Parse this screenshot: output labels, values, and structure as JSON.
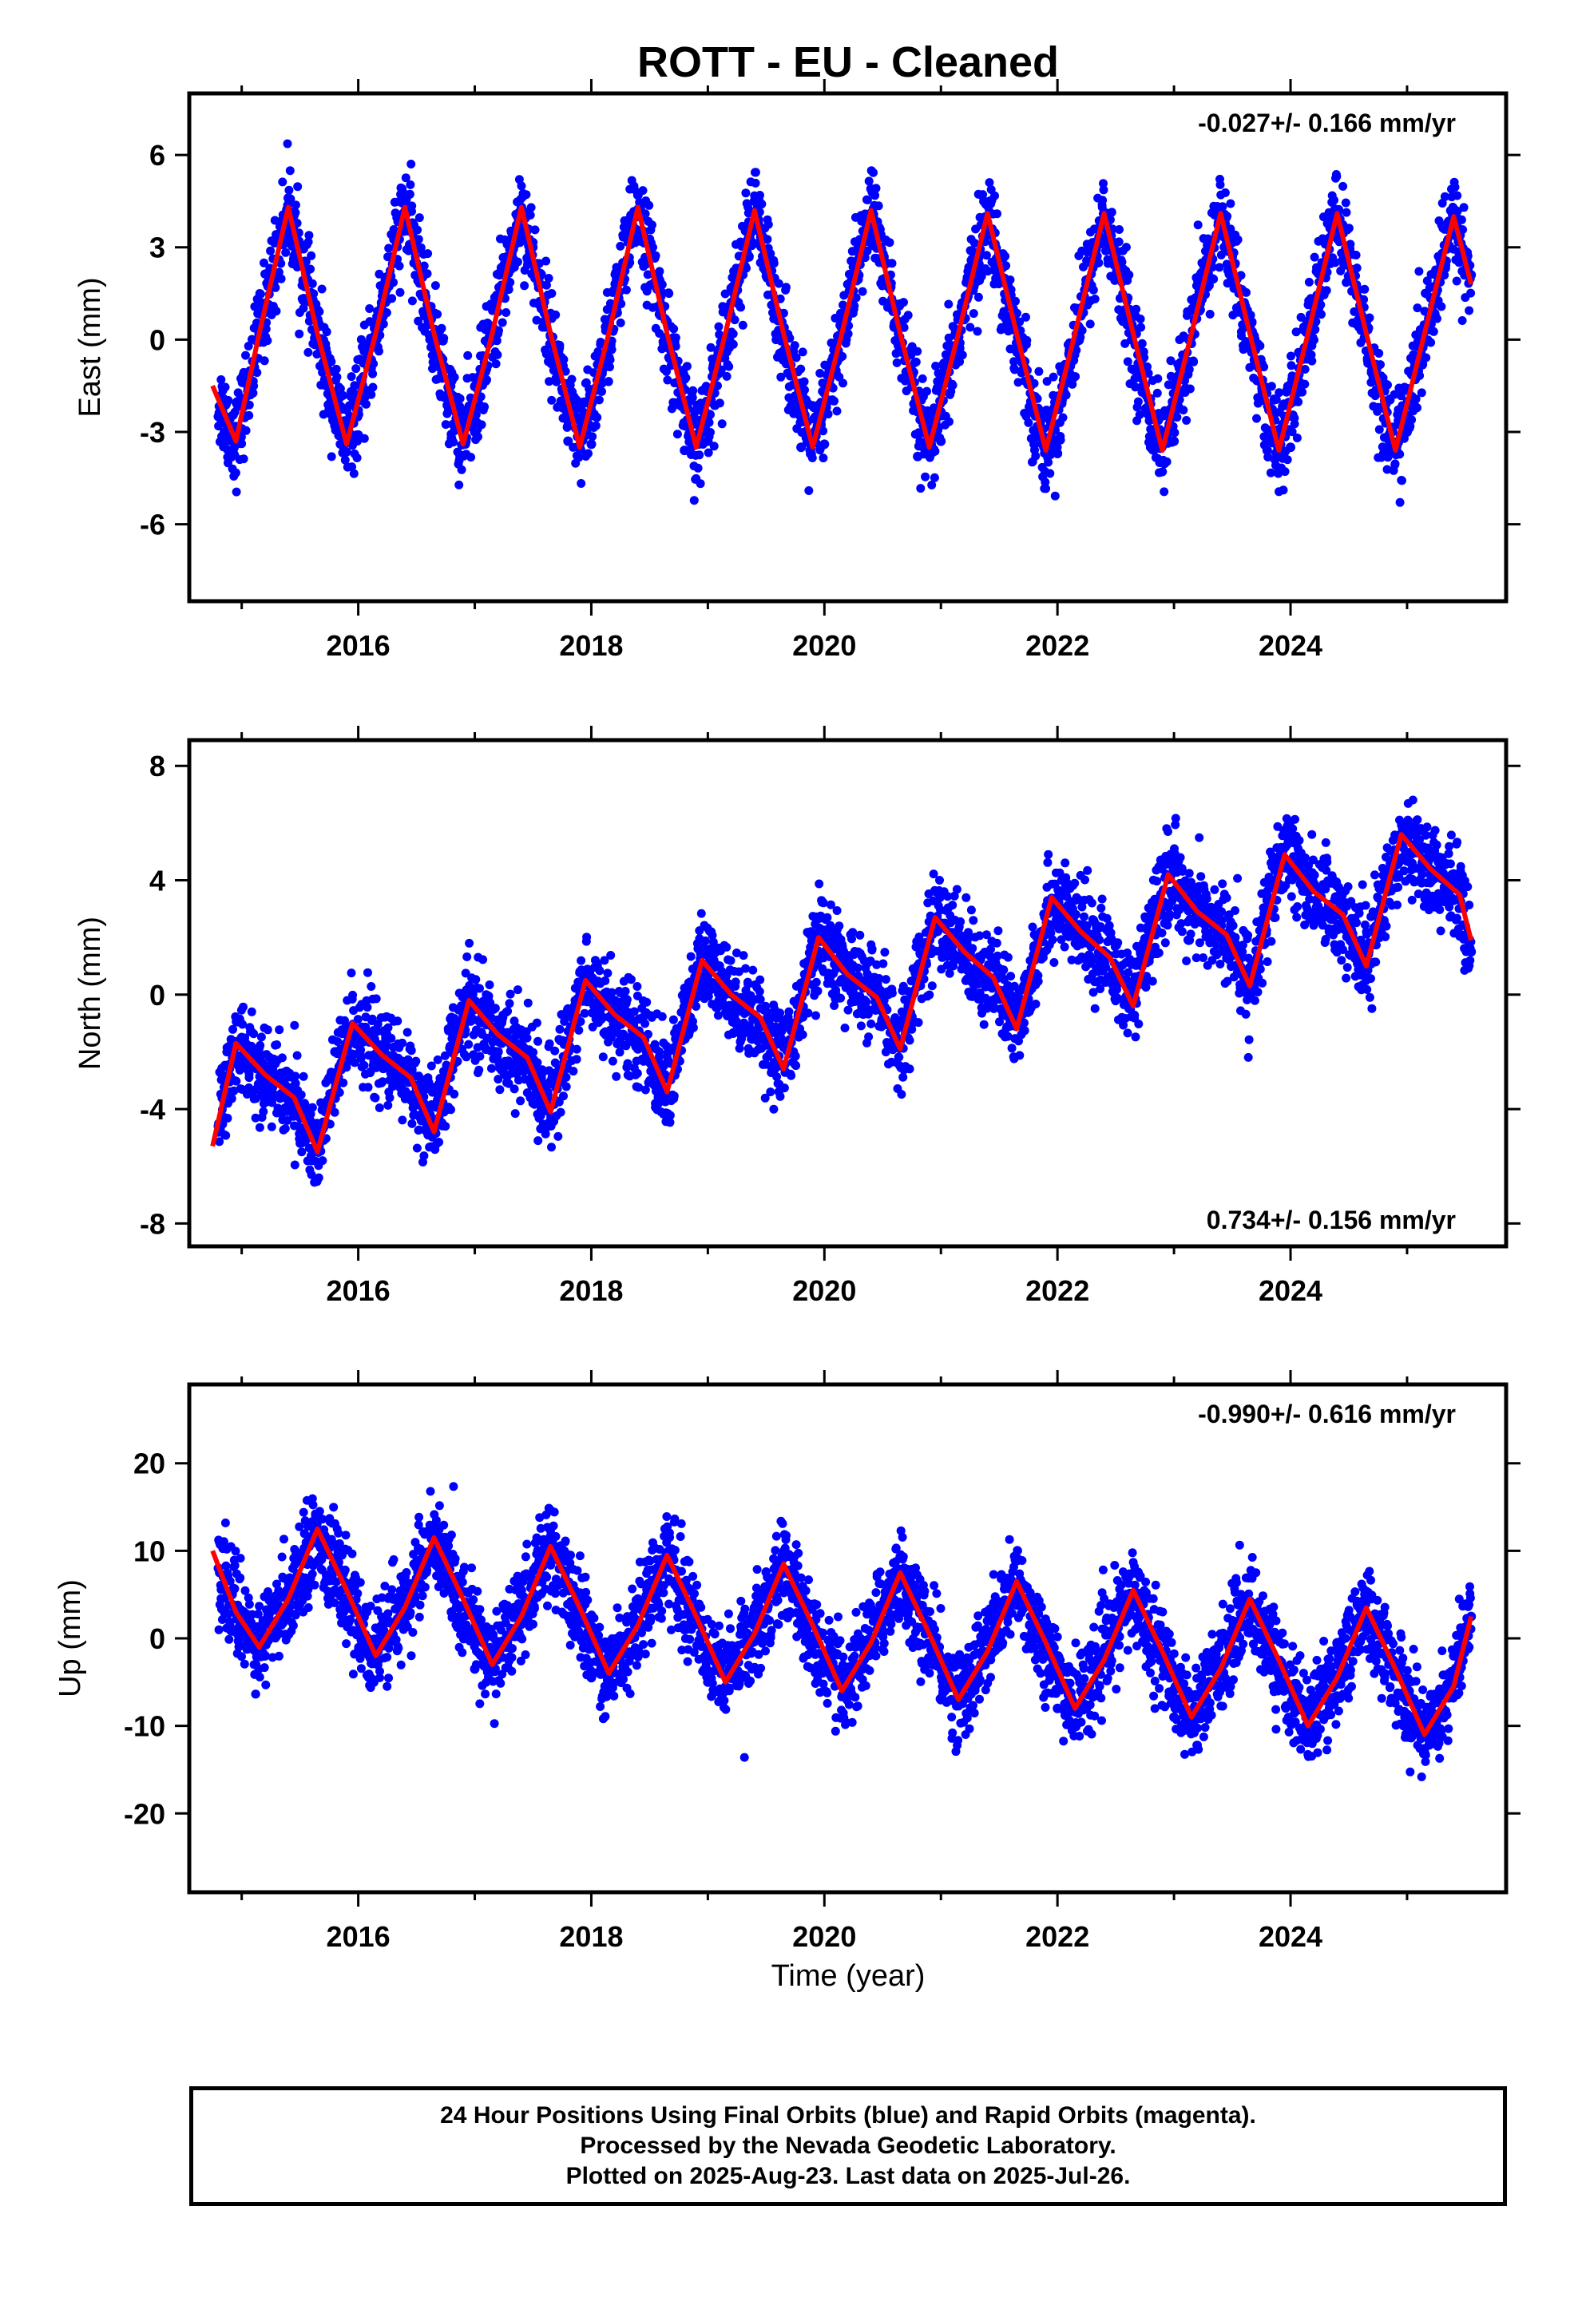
{
  "title": "ROTT  - EU - Cleaned",
  "xlabel": "Time (year)",
  "footer": {
    "line1": "24 Hour Positions Using Final Orbits (blue) and Rapid Orbits (magenta).",
    "line2": "Processed by the Nevada Geodetic Laboratory.",
    "line3": "Plotted on 2025-Aug-23. Last data on 2025-Jul-26."
  },
  "colors": {
    "points": "#0000ff",
    "fit": "#ff0000",
    "frame": "#000000"
  },
  "chart_data": [
    {
      "type": "scatter",
      "component": "east",
      "ylabel": "East (mm)",
      "rate_text": "-0.027+/- 0.166 mm/yr",
      "rate_position": "top-right",
      "xlim": [
        2014.55,
        2025.85
      ],
      "ylim": [
        -8.5,
        8.0
      ],
      "x_ticks": [
        2016,
        2018,
        2020,
        2022,
        2024
      ],
      "x_tick_labels": [
        "2016",
        "2018",
        "2020",
        "2022",
        "2024"
      ],
      "y_ticks": [
        -6,
        -3,
        0,
        3,
        6
      ],
      "y_tick_labels": [
        "-6",
        "-3",
        "0",
        "3",
        "6"
      ],
      "series": [
        {
          "kind": "points",
          "x": [
            2014.8,
            2015.0,
            2015.2,
            2015.4,
            2015.6,
            2015.8,
            2016.0,
            2016.2,
            2016.4,
            2016.6,
            2016.8,
            2017.0,
            2017.2,
            2017.4,
            2017.6,
            2017.8,
            2018.0,
            2018.2,
            2018.4,
            2018.6,
            2018.8,
            2019.0,
            2019.2,
            2019.4,
            2019.6,
            2019.8,
            2020.0,
            2020.2,
            2020.4,
            2020.6,
            2020.8,
            2021.0,
            2021.2,
            2021.4,
            2021.6,
            2021.8,
            2022.0,
            2022.2,
            2022.4,
            2022.6,
            2022.8,
            2023.0,
            2023.2,
            2023.4,
            2023.6,
            2023.8,
            2024.0,
            2024.2,
            2024.4,
            2024.6,
            2024.8,
            2025.0,
            2025.2,
            2025.4,
            2025.55
          ],
          "y": [
            -2.5,
            -2.9,
            1.1,
            4.6,
            0.8,
            -2.8,
            -3.1,
            1.2,
            4.4,
            0.5,
            -3.2,
            -3.0,
            1.4,
            4.3,
            0.6,
            -3.3,
            -3.4,
            1.0,
            4.7,
            0.9,
            -3.6,
            -3.3,
            1.2,
            4.5,
            0.7,
            -3.5,
            -3.4,
            1.0,
            4.9,
            0.4,
            -3.8,
            -3.3,
            1.1,
            3.8,
            0.6,
            -3.4,
            -3.7,
            0.9,
            3.9,
            0.5,
            -3.5,
            -3.3,
            1.0,
            4.2,
            0.4,
            -3.6,
            -3.5,
            0.8,
            4.1,
            0.5,
            -3.7,
            -3.0,
            0.9,
            4.0,
            2.1
          ]
        },
        {
          "kind": "fit",
          "x": [
            2014.75,
            2014.95,
            2015.15,
            2015.4,
            2015.65,
            2015.9,
            2016.15,
            2016.4,
            2016.65,
            2016.9,
            2017.15,
            2017.4,
            2017.65,
            2017.9,
            2018.15,
            2018.4,
            2018.65,
            2018.9,
            2019.15,
            2019.4,
            2019.65,
            2019.9,
            2020.15,
            2020.4,
            2020.65,
            2020.9,
            2021.15,
            2021.4,
            2021.65,
            2021.9,
            2022.15,
            2022.4,
            2022.65,
            2022.9,
            2023.15,
            2023.4,
            2023.65,
            2023.9,
            2024.15,
            2024.4,
            2024.65,
            2024.9,
            2025.15,
            2025.4,
            2025.55
          ],
          "y": [
            -1.5,
            -3.3,
            0.2,
            4.3,
            0.2,
            -3.4,
            0.2,
            4.3,
            0.2,
            -3.4,
            0.2,
            4.3,
            0.2,
            -3.5,
            0.2,
            4.3,
            0.2,
            -3.5,
            0.2,
            4.2,
            0.2,
            -3.5,
            0.2,
            4.2,
            0.2,
            -3.5,
            0.2,
            4.1,
            0.2,
            -3.6,
            0.2,
            4.1,
            0.2,
            -3.6,
            0.2,
            4.1,
            0.2,
            -3.6,
            0.2,
            4.1,
            0.2,
            -3.6,
            0.2,
            4.0,
            1.8
          ]
        }
      ]
    },
    {
      "type": "scatter",
      "component": "north",
      "ylabel": "North (mm)",
      "rate_text": "0.734+/- 0.156 mm/yr",
      "rate_position": "bottom-right",
      "xlim": [
        2014.55,
        2025.85
      ],
      "ylim": [
        -8.8,
        8.9
      ],
      "x_ticks": [
        2016,
        2018,
        2020,
        2022,
        2024
      ],
      "x_tick_labels": [
        "2016",
        "2018",
        "2020",
        "2022",
        "2024"
      ],
      "y_ticks": [
        -8,
        -4,
        0,
        4,
        8
      ],
      "y_tick_labels": [
        "-8",
        "-4",
        "0",
        "4",
        "8"
      ],
      "series": [
        {
          "kind": "points",
          "x": [
            2014.8,
            2015.0,
            2015.2,
            2015.4,
            2015.6,
            2015.8,
            2016.0,
            2016.2,
            2016.4,
            2016.6,
            2016.8,
            2017.0,
            2017.2,
            2017.4,
            2017.6,
            2017.8,
            2018.0,
            2018.2,
            2018.4,
            2018.6,
            2018.8,
            2019.0,
            2019.2,
            2019.4,
            2019.6,
            2019.8,
            2020.0,
            2020.2,
            2020.4,
            2020.6,
            2020.8,
            2021.0,
            2021.2,
            2021.4,
            2021.6,
            2021.8,
            2022.0,
            2022.2,
            2022.4,
            2022.6,
            2022.8,
            2023.0,
            2023.2,
            2023.4,
            2023.6,
            2023.8,
            2024.0,
            2024.2,
            2024.4,
            2024.6,
            2024.8,
            2025.0,
            2025.2,
            2025.4,
            2025.55
          ],
          "y": [
            -4.6,
            -1.5,
            -2.9,
            -3.5,
            -5.8,
            -2.0,
            -1.2,
            -2.5,
            -3.0,
            -4.9,
            -0.8,
            -0.3,
            -2.0,
            -2.6,
            -3.9,
            -0.5,
            0.6,
            -1.2,
            -1.9,
            -3.1,
            -0.2,
            1.1,
            -0.4,
            -1.3,
            -2.4,
            0.4,
            1.9,
            0.6,
            0.1,
            -1.6,
            1.0,
            2.5,
            1.2,
            0.3,
            -1.0,
            1.7,
            3.4,
            2.1,
            1.3,
            -0.3,
            2.7,
            4.4,
            3.0,
            2.2,
            0.6,
            3.3,
            5.4,
            3.7,
            2.8,
            1.2,
            3.9,
            5.8,
            4.2,
            3.3,
            1.5
          ]
        },
        {
          "kind": "fit",
          "x": [
            2014.75,
            2014.95,
            2015.2,
            2015.45,
            2015.65,
            2015.95,
            2016.2,
            2016.45,
            2016.65,
            2016.95,
            2017.2,
            2017.45,
            2017.65,
            2017.95,
            2018.2,
            2018.45,
            2018.65,
            2018.95,
            2019.2,
            2019.45,
            2019.65,
            2019.95,
            2020.2,
            2020.45,
            2020.65,
            2020.95,
            2021.2,
            2021.45,
            2021.65,
            2021.95,
            2022.2,
            2022.45,
            2022.65,
            2022.95,
            2023.2,
            2023.45,
            2023.65,
            2023.95,
            2024.2,
            2024.45,
            2024.65,
            2024.95,
            2025.2,
            2025.45,
            2025.55
          ],
          "y": [
            -5.3,
            -1.7,
            -2.8,
            -3.6,
            -5.5,
            -1.0,
            -2.1,
            -2.9,
            -4.8,
            -0.2,
            -1.4,
            -2.2,
            -4.1,
            0.5,
            -0.7,
            -1.5,
            -3.4,
            1.2,
            0.0,
            -0.8,
            -2.6,
            2.0,
            0.7,
            -0.1,
            -1.9,
            2.7,
            1.5,
            0.6,
            -1.2,
            3.4,
            2.2,
            1.3,
            -0.4,
            4.2,
            2.9,
            2.1,
            0.3,
            4.9,
            3.6,
            2.8,
            1.0,
            5.6,
            4.4,
            3.5,
            1.9
          ]
        }
      ]
    },
    {
      "type": "scatter",
      "component": "up",
      "ylabel": "Up (mm)",
      "rate_text": "-0.990+/- 0.616 mm/yr",
      "rate_position": "top-right",
      "xlim": [
        2014.55,
        2025.85
      ],
      "ylim": [
        -29.0,
        29.0
      ],
      "x_ticks": [
        2016,
        2018,
        2020,
        2022,
        2024
      ],
      "x_tick_labels": [
        "2016",
        "2018",
        "2020",
        "2022",
        "2024"
      ],
      "y_ticks": [
        -20,
        -10,
        0,
        10,
        20
      ],
      "y_tick_labels": [
        "-20",
        "-10",
        "0",
        "10",
        "20"
      ],
      "series": [
        {
          "kind": "points",
          "x": [
            2014.8,
            2015.0,
            2015.2,
            2015.4,
            2015.6,
            2015.8,
            2016.0,
            2016.2,
            2016.4,
            2016.6,
            2016.8,
            2017.0,
            2017.2,
            2017.4,
            2017.6,
            2017.8,
            2018.0,
            2018.2,
            2018.4,
            2018.6,
            2018.8,
            2019.0,
            2019.2,
            2019.4,
            2019.6,
            2019.8,
            2020.0,
            2020.2,
            2020.4,
            2020.6,
            2020.8,
            2021.0,
            2021.2,
            2021.4,
            2021.6,
            2021.8,
            2022.0,
            2022.2,
            2022.4,
            2022.6,
            2022.8,
            2023.0,
            2023.2,
            2023.4,
            2023.6,
            2023.8,
            2024.0,
            2024.2,
            2024.4,
            2024.6,
            2024.8,
            2025.0,
            2025.2,
            2025.4,
            2025.55
          ],
          "y": [
            8.0,
            1.5,
            -2.0,
            6.5,
            11.0,
            5.5,
            -1.5,
            -0.5,
            7.0,
            9.5,
            3.0,
            -3.5,
            -1.0,
            5.5,
            10.5,
            2.5,
            -4.5,
            -2.5,
            4.5,
            9.0,
            1.0,
            -5.0,
            -3.0,
            3.5,
            8.5,
            0.5,
            -6.0,
            -4.0,
            3.0,
            7.0,
            -0.5,
            -7.0,
            -5.0,
            2.0,
            6.0,
            -1.0,
            -8.0,
            -6.0,
            1.0,
            5.0,
            -2.0,
            -9.0,
            -6.5,
            0.5,
            4.5,
            -3.0,
            -9.5,
            -7.5,
            -0.5,
            3.5,
            -4.0,
            -11.0,
            -9.0,
            -2.0,
            2.5
          ]
        },
        {
          "kind": "fit",
          "x": [
            2014.75,
            2014.95,
            2015.15,
            2015.4,
            2015.65,
            2015.9,
            2016.15,
            2016.4,
            2016.65,
            2016.9,
            2017.15,
            2017.4,
            2017.65,
            2017.9,
            2018.15,
            2018.4,
            2018.65,
            2018.9,
            2019.15,
            2019.4,
            2019.65,
            2019.9,
            2020.15,
            2020.4,
            2020.65,
            2020.9,
            2021.15,
            2021.4,
            2021.65,
            2021.9,
            2022.15,
            2022.4,
            2022.65,
            2022.9,
            2023.15,
            2023.4,
            2023.65,
            2023.9,
            2024.15,
            2024.4,
            2024.65,
            2024.9,
            2025.15,
            2025.4,
            2025.55
          ],
          "y": [
            10.0,
            3.0,
            -1.0,
            4.5,
            12.5,
            5.5,
            -2.0,
            3.5,
            11.5,
            4.5,
            -3.0,
            2.5,
            10.5,
            3.5,
            -4.0,
            1.5,
            9.5,
            2.5,
            -5.0,
            0.5,
            8.5,
            1.5,
            -6.0,
            -0.5,
            7.5,
            0.5,
            -7.0,
            -1.5,
            6.5,
            -0.5,
            -8.0,
            -2.5,
            5.5,
            -1.5,
            -9.0,
            -3.5,
            4.5,
            -2.5,
            -10.0,
            -4.5,
            3.5,
            -3.5,
            -11.0,
            -5.5,
            2.5
          ]
        }
      ]
    }
  ]
}
